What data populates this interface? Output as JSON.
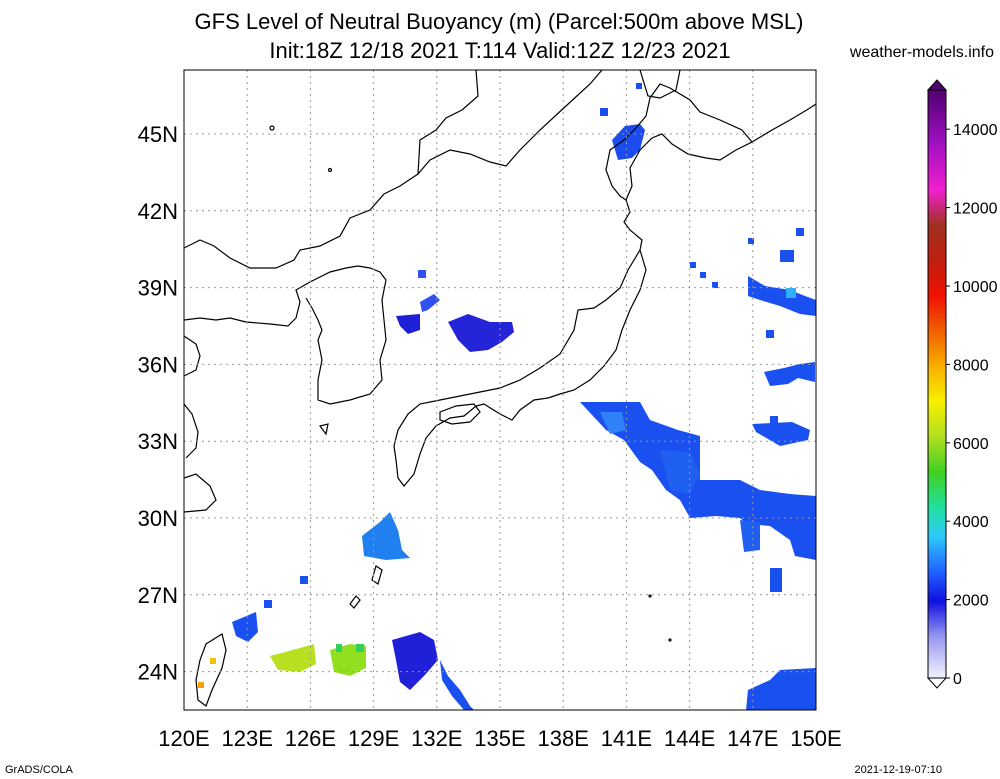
{
  "header": {
    "title_line1": "GFS Level of Neutral Buoyancy (m) (Parcel:500m above MSL)",
    "title_line2": "Init:18Z 12/18 2021 T:114 Valid:12Z 12/23 2021",
    "site": "weather-models.info"
  },
  "map": {
    "lon_range": [
      120,
      150
    ],
    "lat_range": [
      22.5,
      47.5
    ],
    "lon_labels": [
      "120E",
      "123E",
      "126E",
      "129E",
      "132E",
      "135E",
      "138E",
      "141E",
      "144E",
      "147E",
      "150E"
    ],
    "lat_labels": [
      "24N",
      "27N",
      "30N",
      "33N",
      "36N",
      "39N",
      "42N",
      "45N"
    ],
    "grid": "dotted"
  },
  "colorbar": {
    "min": 0,
    "max": 15000,
    "tick_labels": [
      "0",
      "2000",
      "4000",
      "6000",
      "8000",
      "10000",
      "12000",
      "14000"
    ]
  },
  "footer": {
    "left": "GrADS/COLA",
    "right": "2021-12-19-07:10"
  },
  "colors": {
    "grid": "#999999",
    "coast": "#000000"
  }
}
